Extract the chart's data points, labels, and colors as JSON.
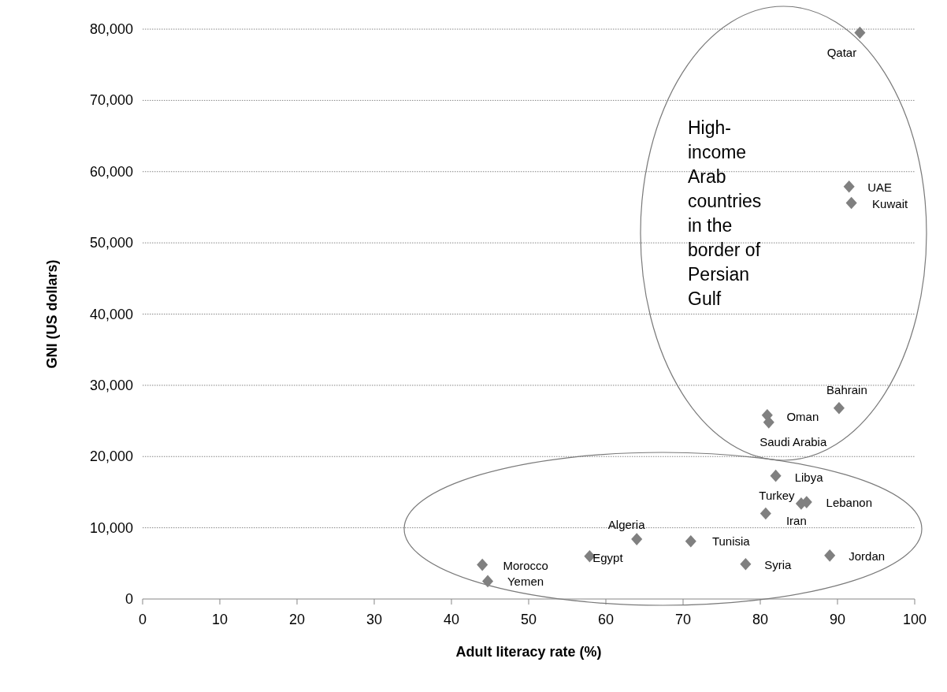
{
  "chart_data": {
    "type": "scatter",
    "xlabel": "Adult literacy rate (%)",
    "ylabel": "GNI (US dollars)",
    "xlim": [
      0,
      100
    ],
    "xticks": [
      0,
      10,
      20,
      30,
      40,
      50,
      60,
      70,
      80,
      90,
      100
    ],
    "ylim": [
      0,
      80000
    ],
    "yticks": [
      0,
      {
        "value": 10000,
        "label": "10,000"
      },
      {
        "value": 20000,
        "label": "20,000"
      },
      {
        "value": 30000,
        "label": "30,000"
      },
      {
        "value": 40000,
        "label": "40,000"
      },
      {
        "value": 50000,
        "label": "50,000"
      },
      {
        "value": 60000,
        "label": "60,000"
      },
      {
        "value": 70000,
        "label": "70,000"
      },
      {
        "value": 80000,
        "label": "80,000"
      }
    ],
    "grid": "y",
    "marker": "diamond",
    "series": [
      {
        "color": "#808080",
        "x": [
          92.9,
          91.5,
          91.8,
          90.2,
          80.9,
          81.1,
          82.0,
          85.3,
          86.0,
          80.7,
          64.0,
          71.0,
          78.1,
          89.0,
          57.9,
          44.0,
          44.7
        ],
        "values": [
          79500,
          57900,
          55600,
          26800,
          25800,
          24800,
          17300,
          13400,
          13600,
          12000,
          8400,
          8100,
          4900,
          6100,
          6000,
          4800,
          2500
        ]
      }
    ],
    "annotations": [
      {
        "text": "Qatar",
        "x": 92.9,
        "y": 79500
      },
      {
        "text": "UAE",
        "x": 91.5,
        "y": 57900
      },
      {
        "text": "Kuwait",
        "x": 91.8,
        "y": 55600
      },
      {
        "text": "Bahrain",
        "x": 90.2,
        "y": 26800
      },
      {
        "text": "Oman",
        "x": 80.9,
        "y": 25800
      },
      {
        "text": "Saudi Arabia",
        "x": 81.1,
        "y": 24800
      },
      {
        "text": "Libya",
        "x": 82.0,
        "y": 17300
      },
      {
        "text": "Turkey",
        "x": 85.3,
        "y": 13400
      },
      {
        "text": "Lebanon",
        "x": 86.0,
        "y": 13600
      },
      {
        "text": "Iran",
        "x": 80.7,
        "y": 12000
      },
      {
        "text": "Algeria",
        "x": 64.0,
        "y": 8400
      },
      {
        "text": "Tunisia",
        "x": 71.0,
        "y": 8100
      },
      {
        "text": "Syria",
        "x": 78.1,
        "y": 4900
      },
      {
        "text": "Jordan",
        "x": 89.0,
        "y": 6100
      },
      {
        "text": "Egypt",
        "x": 57.9,
        "y": 6000
      },
      {
        "text": "Morocco",
        "x": 44.0,
        "y": 4800
      },
      {
        "text": "Yemen",
        "x": 44.7,
        "y": 2500
      },
      "High-income Arab countries in the border of Persian Gulf"
    ]
  }
}
